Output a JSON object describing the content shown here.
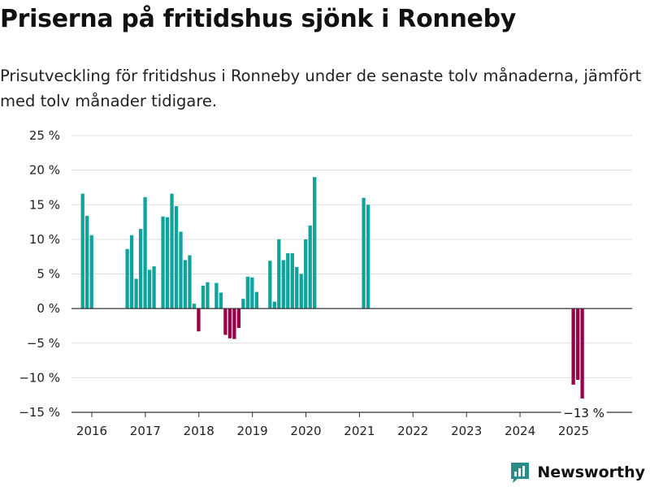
{
  "title": "Priserna på fritidshus sjönk i Ronneby",
  "subtitle": "Prisutveckling för fritidshus i Ronneby under de senaste tolv månaderna, jämfört med tolv månader tidigare.",
  "brand": {
    "name": "Newsworthy",
    "color": "#2a8c86"
  },
  "colors": {
    "positive": "#0ea39b",
    "negative": "#990049",
    "grid": "#dddddd",
    "axis": "#333333"
  },
  "chart_data": {
    "type": "bar",
    "title": "Priserna på fritidshus sjönk i Ronneby",
    "subtitle": "Prisutveckling för fritidshus i Ronneby under de senaste tolv månaderna, jämfört med tolv månader tidigare.",
    "ylabel": "",
    "xlabel": "",
    "ylim": [
      -15,
      25
    ],
    "yticks": [
      25,
      20,
      15,
      10,
      5,
      0,
      -5,
      -10,
      -15
    ],
    "ytick_labels": [
      "25 %",
      "20 %",
      "15 %",
      "10 %",
      "5 %",
      "0 %",
      "−5 %",
      "−10 %",
      "−15 %"
    ],
    "xticks": [
      "2016",
      "2017",
      "2018",
      "2019",
      "2020",
      "2021",
      "2022",
      "2023",
      "2024",
      "2025"
    ],
    "grid": true,
    "annotation": {
      "date": "2025-07",
      "text": "−13 %"
    },
    "series": [
      {
        "points": [
          [
            "2016-03",
            16.6
          ],
          [
            "2016-04",
            13.4
          ],
          [
            "2016-05",
            10.6
          ],
          [
            "2017-01",
            8.6
          ],
          [
            "2017-02",
            10.6
          ],
          [
            "2017-03",
            4.3
          ],
          [
            "2017-04",
            11.5
          ],
          [
            "2017-05",
            16.1
          ],
          [
            "2017-06",
            5.6
          ],
          [
            "2017-07",
            6.1
          ],
          [
            "2017-09",
            13.3
          ],
          [
            "2017-10",
            13.2
          ],
          [
            "2017-11",
            16.6
          ],
          [
            "2017-12",
            14.8
          ],
          [
            "2018-01",
            11.1
          ],
          [
            "2018-02",
            7.0
          ],
          [
            "2018-03",
            7.7
          ],
          [
            "2018-04",
            0.7
          ],
          [
            "2018-05",
            -3.3
          ],
          [
            "2018-06",
            3.3
          ],
          [
            "2018-07",
            3.8
          ],
          [
            "2018-09",
            3.7
          ],
          [
            "2018-10",
            2.3
          ],
          [
            "2018-11",
            -3.8
          ],
          [
            "2018-12",
            -4.3
          ],
          [
            "2019-01",
            -4.4
          ],
          [
            "2019-02",
            -2.8
          ],
          [
            "2019-03",
            1.4
          ],
          [
            "2019-04",
            4.6
          ],
          [
            "2019-05",
            4.5
          ],
          [
            "2019-06",
            2.4
          ],
          [
            "2019-09",
            6.9
          ],
          [
            "2019-10",
            1.0
          ],
          [
            "2019-11",
            10.0
          ],
          [
            "2019-12",
            7.0
          ],
          [
            "2020-01",
            8.0
          ],
          [
            "2020-02",
            8.0
          ],
          [
            "2020-03",
            6.0
          ],
          [
            "2020-04",
            5.0
          ],
          [
            "2020-05",
            10.0
          ],
          [
            "2020-06",
            12.0
          ],
          [
            "2020-07",
            19.0
          ],
          [
            "2021-06",
            16.0
          ],
          [
            "2021-07",
            15.0
          ],
          [
            "2025-05",
            -11.0
          ],
          [
            "2025-06",
            -10.3
          ],
          [
            "2025-07",
            -13.0
          ]
        ]
      }
    ]
  }
}
